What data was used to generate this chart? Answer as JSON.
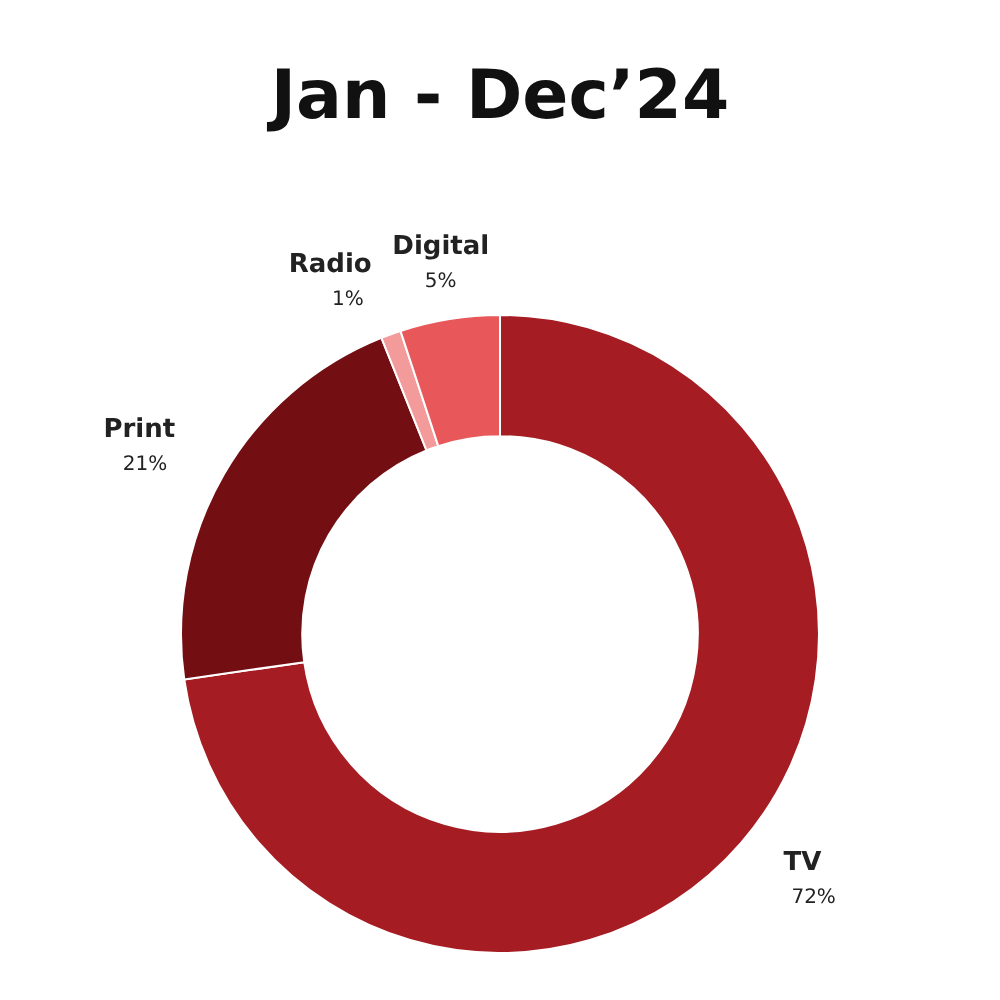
{
  "chart_data": {
    "type": "donut",
    "title": "Jan - Dec’24",
    "categories": [
      "TV",
      "Print",
      "Radio",
      "Digital"
    ],
    "values": [
      72,
      21,
      1,
      5
    ],
    "value_labels": [
      "72%",
      "21%",
      "1%",
      "5%"
    ],
    "colors": [
      "#a51d23",
      "#730f13",
      "#f39a9a",
      "#e8585a"
    ],
    "legend": false
  }
}
